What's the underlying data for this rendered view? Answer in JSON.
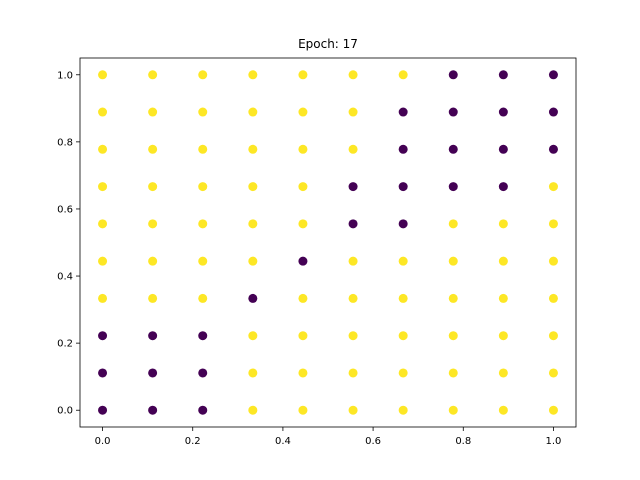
{
  "chart_data": {
    "type": "scatter",
    "title": "Epoch: 17",
    "xlabel": "",
    "ylabel": "",
    "xlim": [
      -0.05,
      1.05
    ],
    "ylim": [
      -0.05,
      1.05
    ],
    "xticks": [
      0.0,
      0.2,
      0.4,
      0.6,
      0.8,
      1.0
    ],
    "yticks": [
      0.0,
      0.2,
      0.4,
      0.6,
      0.8,
      1.0
    ],
    "xtick_labels": [
      "0.0",
      "0.2",
      "0.4",
      "0.6",
      "0.8",
      "1.0"
    ],
    "ytick_labels": [
      "0.0",
      "0.2",
      "0.4",
      "0.6",
      "0.8",
      "1.0"
    ],
    "grid": false,
    "legend": "none",
    "colors": {
      "class_0": "#440154",
      "class_1": "#fde725"
    },
    "grid_values": [
      0.0,
      0.1111,
      0.2222,
      0.3333,
      0.4444,
      0.5556,
      0.6667,
      0.7778,
      0.8889,
      1.0
    ],
    "labels_by_row_top_to_bottom": [
      [
        1,
        1,
        1,
        1,
        1,
        1,
        1,
        0,
        0,
        0
      ],
      [
        1,
        1,
        1,
        1,
        1,
        1,
        0,
        0,
        0,
        0
      ],
      [
        1,
        1,
        1,
        1,
        1,
        1,
        0,
        0,
        0,
        0
      ],
      [
        1,
        1,
        1,
        1,
        1,
        0,
        0,
        0,
        0,
        1
      ],
      [
        1,
        1,
        1,
        1,
        1,
        0,
        0,
        1,
        1,
        1
      ],
      [
        1,
        1,
        1,
        1,
        0,
        1,
        1,
        1,
        1,
        1
      ],
      [
        1,
        1,
        1,
        0,
        1,
        1,
        1,
        1,
        1,
        1
      ],
      [
        0,
        0,
        0,
        1,
        1,
        1,
        1,
        1,
        1,
        1
      ],
      [
        0,
        0,
        0,
        1,
        1,
        1,
        1,
        1,
        1,
        1
      ],
      [
        0,
        0,
        0,
        1,
        1,
        1,
        1,
        1,
        1,
        1
      ]
    ]
  }
}
